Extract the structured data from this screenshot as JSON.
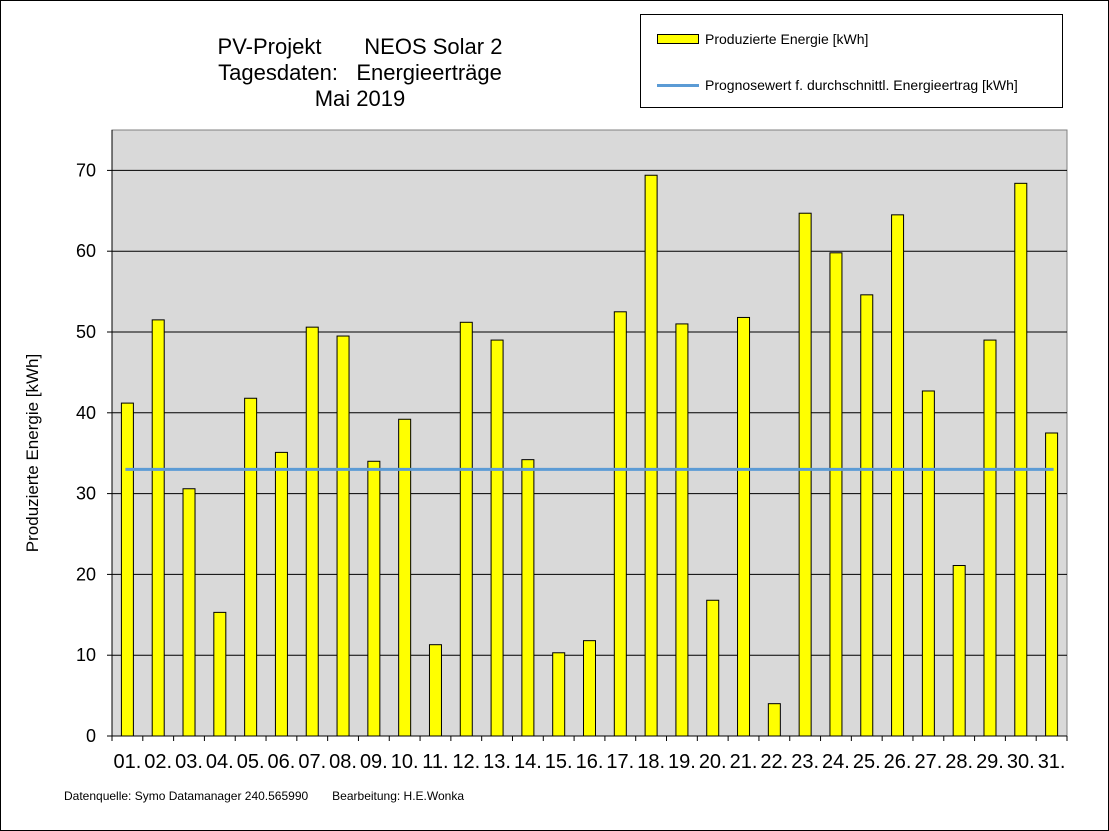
{
  "title": {
    "line1": "PV-Projekt       NEOS Solar 2",
    "line2": "Tagesdaten:   Energieerträge",
    "line3": "Mai 2019"
  },
  "footer": {
    "source": "Datenquelle: Symo Datamanager 240.565990",
    "editor": "Bearbeitung: H.E.Wonka"
  },
  "colors": {
    "bar": "#ffff00",
    "bar_stroke": "#000000",
    "plot_background": "#d9d9d9",
    "forecast_line": "#5b9bd5"
  },
  "chart_data": {
    "type": "bar",
    "title": "PV-Projekt NEOS Solar 2 Tagesdaten: Energieerträge Mai 2019",
    "xlabel": "",
    "ylabel": "Produzierte Energie [kWh]",
    "ylim": [
      0,
      75
    ],
    "yticks": [
      0,
      10,
      20,
      30,
      40,
      50,
      60,
      70
    ],
    "grid": true,
    "legend_position": "top-right",
    "categories": [
      "01.",
      "02.",
      "03.",
      "04.",
      "05.",
      "06.",
      "07.",
      "08.",
      "09.",
      "10.",
      "11.",
      "12.",
      "13.",
      "14.",
      "15.",
      "16.",
      "17.",
      "18.",
      "19.",
      "20.",
      "21.",
      "22.",
      "23.",
      "24.",
      "25.",
      "26.",
      "27.",
      "28.",
      "29.",
      "30.",
      "31."
    ],
    "series": [
      {
        "name": "Produzierte Energie [kWh]",
        "type": "bar",
        "values": [
          41.2,
          51.5,
          30.6,
          15.3,
          41.8,
          35.1,
          50.6,
          49.5,
          34.0,
          39.2,
          11.3,
          51.2,
          49.0,
          34.2,
          10.3,
          11.8,
          52.5,
          69.4,
          51.0,
          16.8,
          51.8,
          4.0,
          64.7,
          59.8,
          54.6,
          64.5,
          42.7,
          21.1,
          49.0,
          68.4,
          37.5
        ]
      },
      {
        "name": "Prognosewert f. durchschnittl. Energieertrag  [kWh]",
        "type": "line",
        "value": 33.0
      }
    ]
  }
}
